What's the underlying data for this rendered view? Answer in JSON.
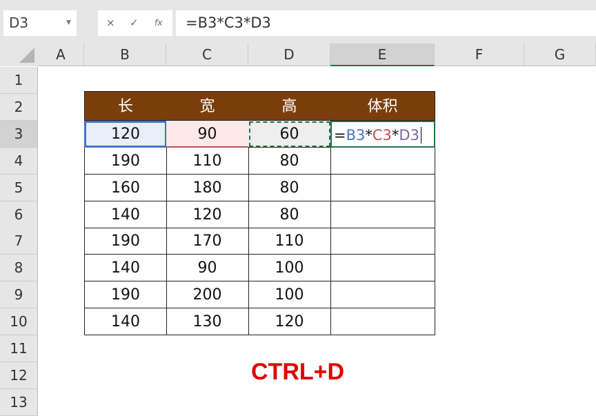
{
  "name_box": "D3",
  "formula_buttons": {
    "cancel": "×",
    "enter": "✓",
    "fx": "fx"
  },
  "formula": "=B3*C3*D3",
  "columns": [
    "A",
    "B",
    "C",
    "D",
    "E",
    "F",
    "G"
  ],
  "rows": [
    "1",
    "2",
    "3",
    "4",
    "5",
    "6",
    "7",
    "8",
    "9",
    "10",
    "11",
    "12",
    "13"
  ],
  "table": {
    "headers": [
      "长",
      "宽",
      "高",
      "体积"
    ],
    "data": [
      [
        "120",
        "90",
        "60",
        ""
      ],
      [
        "190",
        "110",
        "80",
        ""
      ],
      [
        "160",
        "180",
        "80",
        ""
      ],
      [
        "140",
        "120",
        "80",
        ""
      ],
      [
        "190",
        "170",
        "110",
        ""
      ],
      [
        "140",
        "90",
        "100",
        ""
      ],
      [
        "190",
        "200",
        "100",
        ""
      ],
      [
        "140",
        "130",
        "120",
        ""
      ]
    ]
  },
  "edit_formula": {
    "eq": "=",
    "b": "B3",
    "s1": "*",
    "c": "C3",
    "s2": "*",
    "d": "D3"
  },
  "caption": "CTRL+D",
  "colors": {
    "header_bg": "#7a3e0c",
    "ref_b": "#4472c4",
    "ref_c": "#c0504d",
    "ref_d": "#8064a2",
    "caption": "#e00000"
  }
}
